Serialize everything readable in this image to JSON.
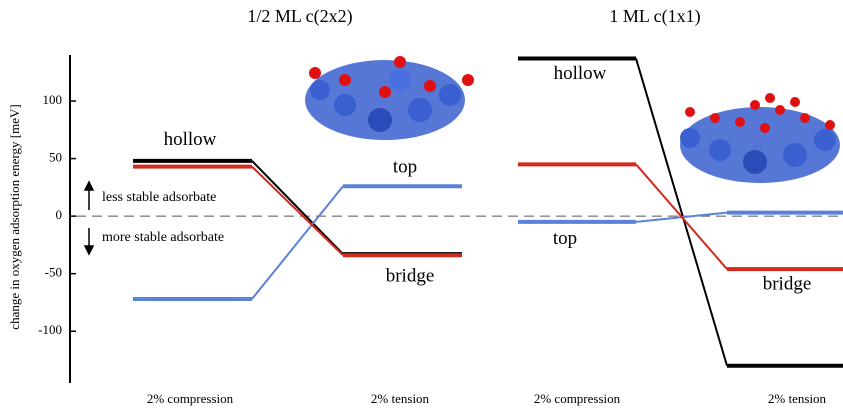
{
  "chart_data": [
    {
      "type": "level",
      "title": "1/2 ML c(2x2)",
      "y_label": "change in oxygen adsorption energy [meV]",
      "categories": [
        "2% compression",
        "2% tension"
      ],
      "ylim": [
        -145,
        140
      ],
      "yticks": [
        -100,
        -50,
        0,
        50,
        100
      ],
      "annotations": [
        "less stable adsorbate",
        "more stable adsorbate"
      ],
      "series": [
        {
          "name": "hollow",
          "color": "#000000",
          "values": [
            48,
            -33
          ]
        },
        {
          "name": "top",
          "color": "#5b82d6",
          "values": [
            -72,
            26
          ]
        },
        {
          "name": "bridge",
          "color": "#d22a1f",
          "values": [
            43,
            -34
          ]
        }
      ]
    },
    {
      "type": "level",
      "title": "1 ML c(1x1)",
      "categories": [
        "2% compression",
        "2% tension"
      ],
      "ylim": [
        -145,
        140
      ],
      "series": [
        {
          "name": "hollow",
          "color": "#000000",
          "values": [
            137,
            -130
          ]
        },
        {
          "name": "top",
          "color": "#5b82d6",
          "values": [
            -5,
            3
          ]
        },
        {
          "name": "bridge",
          "color": "#d22a1f",
          "values": [
            45,
            -46
          ]
        }
      ]
    }
  ]
}
